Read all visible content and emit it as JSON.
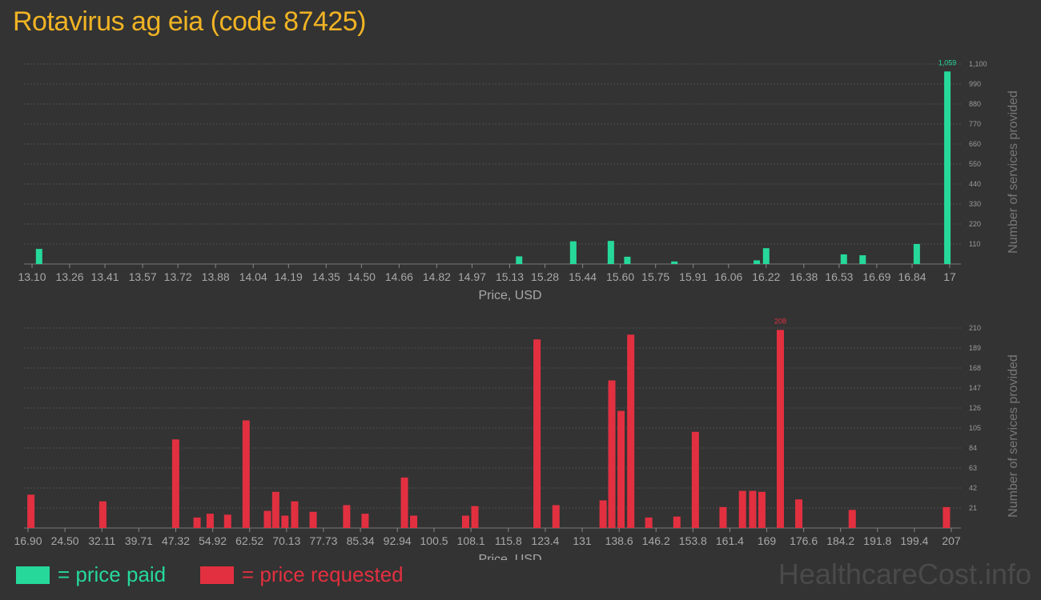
{
  "title": "Rotavirus ag eia (code 87425)",
  "watermark": "HealthcareCost.info",
  "legend": [
    {
      "label": "= price paid",
      "color": "#26d99b"
    },
    {
      "label": "= price requested",
      "color": "#e23040"
    }
  ],
  "chart_data": [
    {
      "type": "bar",
      "name": "price paid",
      "color": "#26d99b",
      "xlabel": "Price, USD",
      "ylabel": "Number of services provided",
      "ylim": [
        0,
        1100
      ],
      "yticks": [
        110,
        220,
        330,
        440,
        550,
        660,
        770,
        880,
        990,
        1100
      ],
      "ytick_labels": [
        "110",
        "220",
        "330",
        "440",
        "550",
        "660",
        "770",
        "880",
        "990",
        "1,100"
      ],
      "xlim": [
        13.1,
        17.0
      ],
      "xticks": [
        13.1,
        13.26,
        13.41,
        13.57,
        13.72,
        13.88,
        14.04,
        14.19,
        14.35,
        14.5,
        14.66,
        14.82,
        14.97,
        15.13,
        15.28,
        15.44,
        15.6,
        15.75,
        15.91,
        16.06,
        16.22,
        16.38,
        16.53,
        16.69,
        16.84,
        17.0
      ],
      "xtick_labels": [
        "13.10",
        "13.26",
        "13.41",
        "13.57",
        "13.72",
        "13.88",
        "14.04",
        "14.19",
        "14.35",
        "14.50",
        "14.66",
        "14.82",
        "14.97",
        "15.13",
        "15.28",
        "15.44",
        "15.60",
        "15.75",
        "15.91",
        "16.06",
        "16.22",
        "16.38",
        "16.53",
        "16.69",
        "16.84",
        "17"
      ],
      "grid": true,
      "x": [
        13.13,
        15.17,
        15.4,
        15.56,
        15.63,
        15.83,
        16.18,
        16.22,
        16.55,
        16.63,
        16.86,
        16.99
      ],
      "values": [
        83,
        42,
        125,
        127,
        40,
        14,
        20,
        87,
        53,
        48,
        110,
        1059
      ],
      "max_label": "1,059"
    },
    {
      "type": "bar",
      "name": "price requested",
      "color": "#e23040",
      "xlabel": "Price, USD",
      "ylabel": "Number of services provided",
      "ylim": [
        0,
        210
      ],
      "yticks": [
        21,
        42,
        63,
        84,
        105,
        126,
        147,
        168,
        189,
        210
      ],
      "ytick_labels": [
        "21",
        "42",
        "63",
        "84",
        "105",
        "126",
        "147",
        "168",
        "189",
        "210"
      ],
      "xlim": [
        16.9,
        207.0
      ],
      "xticks": [
        16.9,
        24.5,
        32.11,
        39.71,
        47.32,
        54.92,
        62.52,
        70.13,
        77.73,
        85.34,
        92.94,
        100.5,
        108.1,
        115.8,
        123.4,
        131.0,
        138.6,
        146.2,
        153.8,
        161.4,
        169.0,
        176.6,
        184.2,
        191.8,
        199.4,
        207.0
      ],
      "xtick_labels": [
        "16.90",
        "24.50",
        "32.11",
        "39.71",
        "47.32",
        "54.92",
        "62.52",
        "70.13",
        "77.73",
        "85.34",
        "92.94",
        "100.5",
        "108.1",
        "115.8",
        "123.4",
        "131",
        "138.6",
        "146.2",
        "153.8",
        "161.4",
        "169",
        "176.6",
        "184.2",
        "191.8",
        "199.4",
        "207"
      ],
      "grid": true,
      "x": [
        17.5,
        32.3,
        47.3,
        51.7,
        54.4,
        58.0,
        61.8,
        66.2,
        67.9,
        69.8,
        71.8,
        75.6,
        82.5,
        86.3,
        94.4,
        96.3,
        107.0,
        108.9,
        121.7,
        125.6,
        135.3,
        137.1,
        139.0,
        141.0,
        144.7,
        150.5,
        154.3,
        160.0,
        164.0,
        166.1,
        168.0,
        171.8,
        175.6,
        186.6,
        206.0
      ],
      "values": [
        35,
        28,
        93,
        11,
        15,
        14,
        113,
        18,
        38,
        13,
        28,
        17,
        24,
        15,
        53,
        13,
        13,
        23,
        198,
        24,
        29,
        155,
        123,
        203,
        11,
        12,
        101,
        22,
        39,
        39,
        38,
        208,
        30,
        19,
        22
      ],
      "max_label": "208"
    }
  ]
}
